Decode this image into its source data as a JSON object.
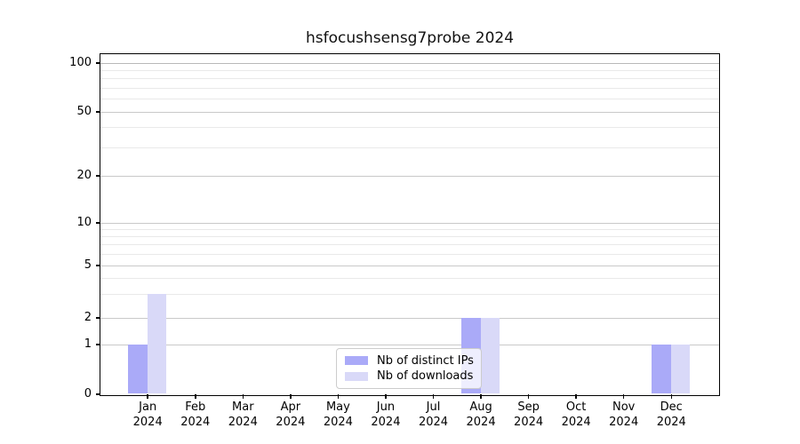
{
  "chart_data": {
    "type": "bar",
    "title": "hsfocushsensg7probe 2024",
    "months": [
      "Jan",
      "Feb",
      "Mar",
      "Apr",
      "May",
      "Jun",
      "Jul",
      "Aug",
      "Sep",
      "Oct",
      "Nov",
      "Dec"
    ],
    "x_tick_year": "2024",
    "series": [
      {
        "name": "Nb of distinct IPs",
        "color": "#aaaaf8",
        "values": [
          1,
          0,
          0,
          0,
          0,
          0,
          0,
          2,
          0,
          0,
          0,
          1
        ]
      },
      {
        "name": "Nb of downloads",
        "color": "#d9d9f8",
        "values": [
          3,
          0,
          0,
          0,
          0,
          0,
          0,
          2,
          0,
          0,
          0,
          1
        ]
      }
    ],
    "y_ticks": [
      0,
      1,
      2,
      5,
      10,
      20,
      50,
      100
    ],
    "y_minor_gridlines": [
      3,
      4,
      6,
      7,
      8,
      9,
      30,
      40,
      60,
      70,
      80,
      90
    ],
    "y_axis_scale": "log-like",
    "ylim": [
      0,
      115
    ],
    "grid": "horizontal",
    "legend_position": "lower center-right inside axes"
  }
}
